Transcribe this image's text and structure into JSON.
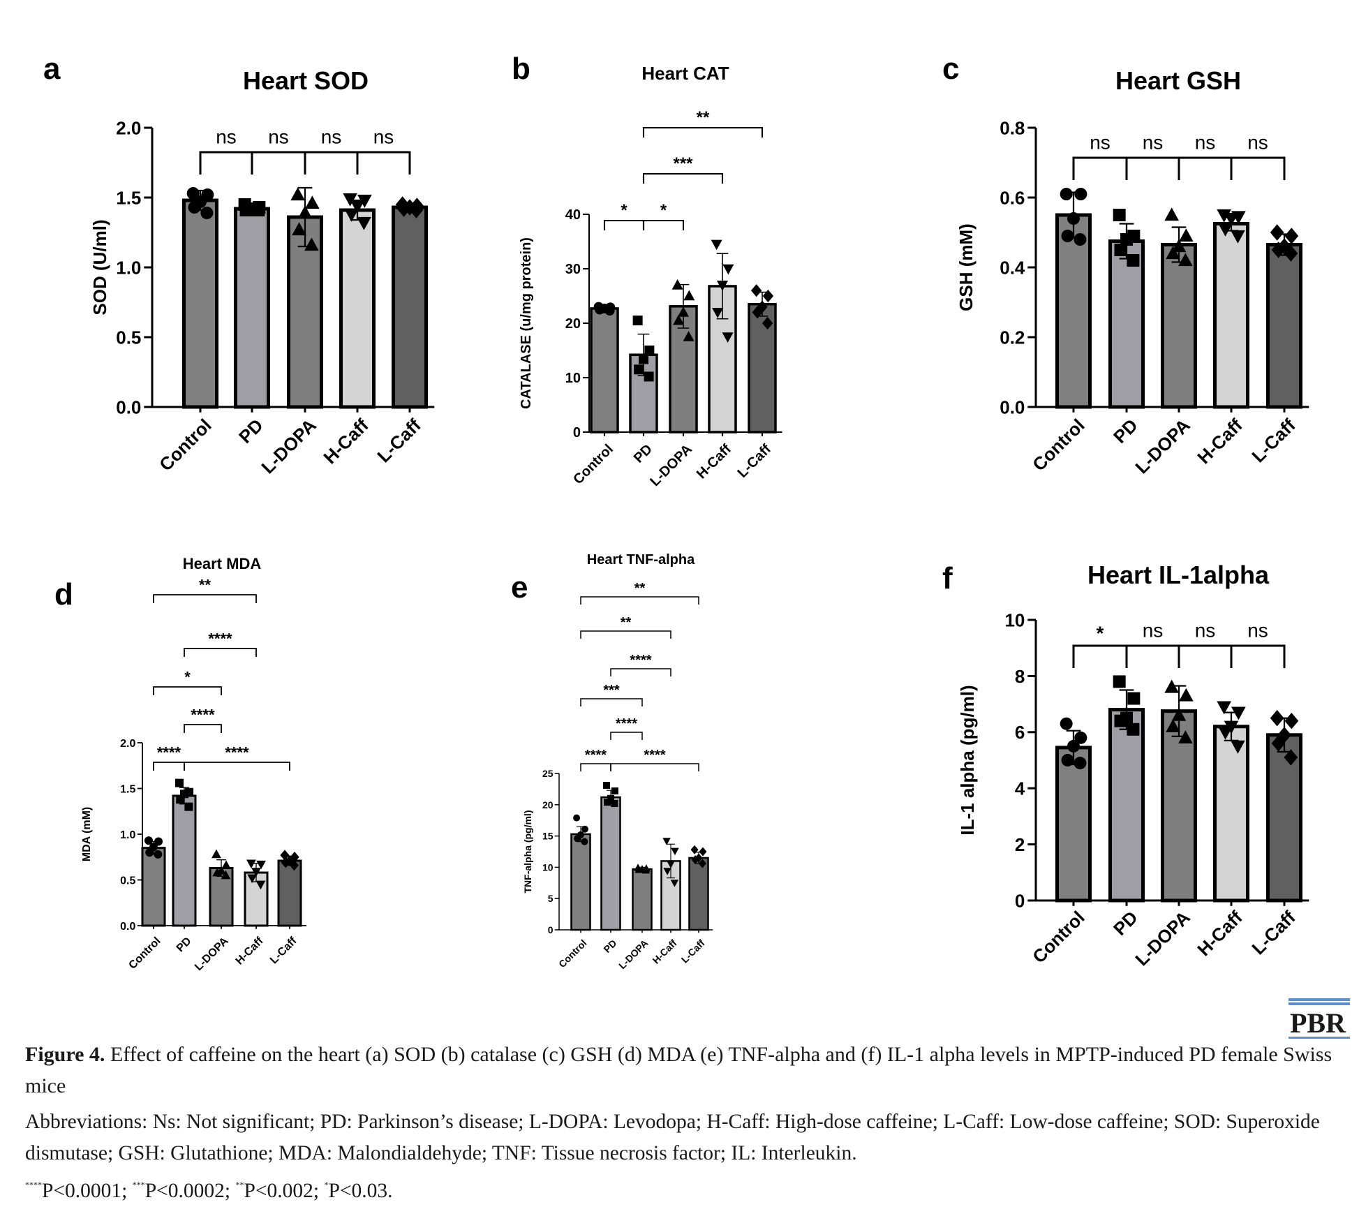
{
  "chart_data": [
    {
      "panel": "a",
      "type": "bar",
      "title": "Heart SOD",
      "ylabel": "SOD (U/ml)",
      "categories": [
        "Control",
        "PD",
        "L-DOPA",
        "H-Caff",
        "L-Caff"
      ],
      "values": [
        1.48,
        1.42,
        1.36,
        1.41,
        1.43
      ],
      "errors": [
        0.07,
        0.02,
        0.21,
        0.07,
        0.01
      ],
      "points": [
        [
          1.53,
          1.52,
          1.47,
          1.43,
          1.39
        ],
        [
          1.45,
          1.43,
          1.42,
          1.41,
          1.41
        ],
        [
          1.52,
          1.46,
          1.39,
          1.27,
          1.16
        ],
        [
          1.49,
          1.48,
          1.44,
          1.38,
          1.32
        ],
        [
          1.45,
          1.44,
          1.43,
          1.42,
          1.41
        ]
      ],
      "ylim": [
        0,
        2.0
      ],
      "yticks": [
        0.0,
        0.5,
        1.0,
        1.5,
        2.0
      ],
      "tick_decimals": 1,
      "brackets": [
        {
          "from": 0,
          "to": 1,
          "label": "ns"
        },
        {
          "from": 1,
          "to": 2,
          "label": "ns"
        },
        {
          "from": 2,
          "to": 3,
          "label": "ns"
        },
        {
          "from": 3,
          "to": 4,
          "label": "ns"
        }
      ]
    },
    {
      "panel": "b",
      "type": "bar",
      "title": "Heart CAT",
      "ylabel": "CATALASE (u/mg protein)",
      "categories": [
        "Control",
        "PD",
        "L-DOPA",
        "H-Caff",
        "L-Caff"
      ],
      "values": [
        22.7,
        14.2,
        23.1,
        26.8,
        23.5
      ],
      "errors": [
        0.4,
        3.8,
        4.0,
        6.0,
        2.2
      ],
      "points": [
        [
          23.0,
          22.9,
          22.7,
          22.5,
          22.3
        ],
        [
          20.5,
          15.0,
          13.4,
          11.5,
          10.2
        ],
        [
          27.0,
          25.0,
          22.0,
          20.5,
          17.5
        ],
        [
          34.5,
          30.0,
          27.0,
          22.0,
          17.5
        ],
        [
          26.0,
          25.0,
          23.0,
          22.0,
          20.0
        ]
      ],
      "ylim": [
        0,
        40
      ],
      "yticks": [
        0,
        10,
        20,
        30,
        40
      ],
      "tick_decimals": 0,
      "brackets": [
        {
          "from": 0,
          "to": 1,
          "label": "*"
        },
        {
          "from": 1,
          "to": 2,
          "label": "*"
        },
        {
          "from": 1,
          "to": 3,
          "label": "***"
        },
        {
          "from": 1,
          "to": 4,
          "label": "**"
        }
      ]
    },
    {
      "panel": "c",
      "type": "bar",
      "title": "Heart GSH",
      "ylabel": "GSH (mM)",
      "categories": [
        "Control",
        "PD",
        "L-DOPA",
        "H-Caff",
        "L-Caff"
      ],
      "values": [
        0.55,
        0.475,
        0.465,
        0.525,
        0.465
      ],
      "errors": [
        0.065,
        0.05,
        0.05,
        0.02,
        0.03
      ],
      "points": [
        [
          0.61,
          0.61,
          0.54,
          0.49,
          0.48
        ],
        [
          0.55,
          0.49,
          0.48,
          0.45,
          0.42
        ],
        [
          0.55,
          0.49,
          0.46,
          0.44,
          0.42
        ],
        [
          0.55,
          0.545,
          0.54,
          0.51,
          0.49
        ],
        [
          0.5,
          0.49,
          0.46,
          0.45,
          0.44
        ]
      ],
      "ylim": [
        0,
        0.8
      ],
      "yticks": [
        0.0,
        0.2,
        0.4,
        0.6,
        0.8
      ],
      "tick_decimals": 1,
      "brackets": [
        {
          "from": 0,
          "to": 1,
          "label": "ns"
        },
        {
          "from": 1,
          "to": 2,
          "label": "ns"
        },
        {
          "from": 2,
          "to": 3,
          "label": "ns"
        },
        {
          "from": 3,
          "to": 4,
          "label": "ns"
        }
      ]
    },
    {
      "panel": "d",
      "type": "bar",
      "title": "Heart MDA",
      "ylabel": "MDA (mM)",
      "categories": [
        "Control",
        "PD",
        "L-DOPA",
        "H-Caff",
        "L-Caff"
      ],
      "values": [
        0.85,
        1.42,
        0.63,
        0.58,
        0.71
      ],
      "errors": [
        0.07,
        0.09,
        0.09,
        0.1,
        0.05
      ],
      "points": [
        [
          0.93,
          0.92,
          0.86,
          0.8,
          0.78
        ],
        [
          1.56,
          1.46,
          1.44,
          1.38,
          1.3
        ],
        [
          0.78,
          0.66,
          0.6,
          0.58,
          0.55
        ],
        [
          0.68,
          0.67,
          0.59,
          0.52,
          0.45
        ],
        [
          0.77,
          0.75,
          0.71,
          0.69,
          0.66
        ]
      ],
      "ylim": [
        0,
        2.0
      ],
      "yticks": [
        0.0,
        0.5,
        1.0,
        1.5,
        2.0
      ],
      "tick_decimals": 1,
      "brackets": [
        {
          "from": 0,
          "to": 1,
          "label": "****"
        },
        {
          "from": 1,
          "to": 4,
          "label": "****"
        },
        {
          "from": 1,
          "to": 2,
          "label": "****"
        },
        {
          "from": 0,
          "to": 2,
          "label": "*"
        },
        {
          "from": 1,
          "to": 3,
          "label": "****"
        },
        {
          "from": 0,
          "to": 3,
          "label": "**"
        }
      ]
    },
    {
      "panel": "e",
      "type": "bar",
      "title": "Heart TNF-alpha",
      "ylabel": "TNF-alpha (pg/ml)",
      "categories": [
        "Control",
        "PD",
        "L-DOPA",
        "H-Caff",
        "L-Caff"
      ],
      "values": [
        15.3,
        21.2,
        9.7,
        11.0,
        11.5
      ],
      "errors": [
        1.2,
        1.1,
        0.3,
        2.7,
        0.9
      ],
      "points": [
        [
          17.9,
          16.1,
          15.2,
          14.6,
          14.1
        ],
        [
          23.1,
          22.2,
          21.0,
          20.4,
          20.2
        ],
        [
          9.9,
          9.8,
          9.7,
          9.6,
          9.5
        ],
        [
          14.2,
          12.6,
          10.5,
          9.4,
          7.5
        ],
        [
          12.8,
          12.5,
          11.5,
          11.2,
          10.6
        ]
      ],
      "ylim": [
        0,
        25
      ],
      "yticks": [
        0,
        5,
        10,
        15,
        20,
        25
      ],
      "tick_decimals": 0,
      "brackets": [
        {
          "from": 0,
          "to": 1,
          "label": "****"
        },
        {
          "from": 1,
          "to": 4,
          "label": "****"
        },
        {
          "from": 1,
          "to": 2,
          "label": "****"
        },
        {
          "from": 0,
          "to": 2,
          "label": "***"
        },
        {
          "from": 1,
          "to": 3,
          "label": "****"
        },
        {
          "from": 0,
          "to": 3,
          "label": "**"
        },
        {
          "from": 0,
          "to": 4,
          "label": "**"
        }
      ]
    },
    {
      "panel": "f",
      "type": "bar",
      "title": "Heart IL-1alpha",
      "ylabel": "IL-1 alpha (pg/ml)",
      "categories": [
        "Control",
        "PD",
        "L-DOPA",
        "H-Caff",
        "L-Caff"
      ],
      "values": [
        5.45,
        6.8,
        6.75,
        6.2,
        5.9
      ],
      "errors": [
        0.6,
        0.7,
        0.9,
        0.5,
        0.6
      ],
      "points": [
        [
          6.3,
          5.8,
          5.5,
          5.0,
          4.9
        ],
        [
          7.8,
          7.2,
          6.5,
          6.4,
          6.1
        ],
        [
          7.6,
          7.3,
          6.6,
          6.2,
          5.8
        ],
        [
          6.9,
          6.7,
          6.2,
          6.0,
          5.5
        ],
        [
          6.5,
          6.4,
          5.9,
          5.6,
          5.1
        ]
      ],
      "ylim": [
        0,
        10
      ],
      "yticks": [
        0,
        2,
        4,
        6,
        8,
        10
      ],
      "tick_decimals": 0,
      "brackets": [
        {
          "from": 0,
          "to": 1,
          "label": "*"
        },
        {
          "from": 1,
          "to": 2,
          "label": "ns"
        },
        {
          "from": 2,
          "to": 3,
          "label": "ns"
        },
        {
          "from": 3,
          "to": 4,
          "label": "ns"
        }
      ]
    }
  ],
  "colors": {
    "bars": [
      "#808080",
      "#9e9ea4",
      "#7f7f7f",
      "#d4d4d4",
      "#606060"
    ],
    "ink": "#000000",
    "logo_accent": "#5b8fd6"
  },
  "caption": {
    "figure_label": "Figure 4.",
    "title_text": " Effect of caffeine on the heart (a) SOD (b) catalase (c) GSH (d) MDA (e) TNF-alpha and (f) IL-1 alpha levels in MPTP-induced PD female Swiss mice",
    "abbreviations": "Abbreviations: Ns: Not significant; PD: Parkinson’s disease; L-DOPA: Levodopa; H-Caff: High-dose caffeine; L-Caff: Low-dose caffeine; SOD: Superoxide dismutase; GSH: Glutathione; MDA: Malondialdehyde; TNF: Tissue necrosis factor; IL: Interleukin.",
    "p_values": [
      {
        "stars": "****",
        "text": "P<0.0001; "
      },
      {
        "stars": "***",
        "text": "P<0.0002; "
      },
      {
        "stars": "**",
        "text": "P<0.002; "
      },
      {
        "stars": "*",
        "text": "P<0.03."
      }
    ]
  },
  "logo_text": "PBR"
}
